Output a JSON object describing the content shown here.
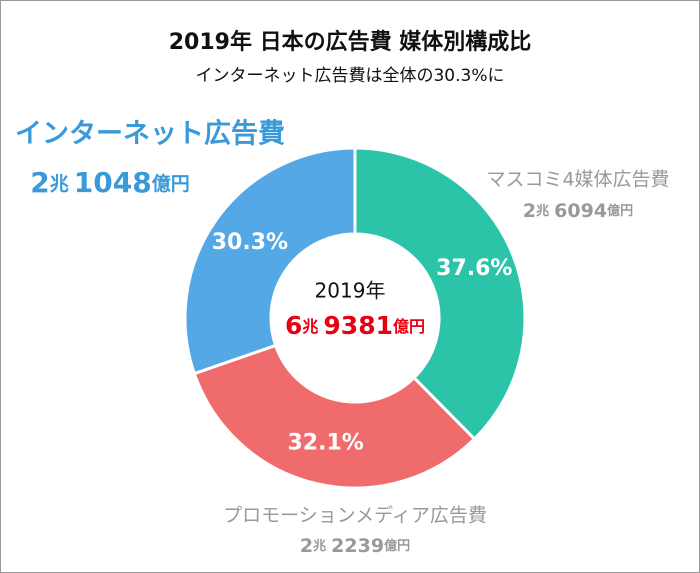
{
  "chart_data": {
    "type": "pie",
    "donut": true,
    "title": "2019年 日本の広告費 媒体別構成比",
    "subtitle": "インターネット広告費は全体の30.3%に",
    "categories": [
      "マスコミ4媒体広告費",
      "プロモーションメディア広告費",
      "インターネット広告費"
    ],
    "values": [
      37.6,
      32.1,
      30.3
    ],
    "value_labels": [
      "37.6%",
      "32.1%",
      "30.3%"
    ],
    "colors": [
      "#2bc4a9",
      "#f06b6b",
      "#55a8e6"
    ],
    "amounts": [
      [
        "2",
        "兆",
        "6094",
        "億円"
      ],
      [
        "2",
        "兆",
        "2239",
        "億円"
      ],
      [
        "2",
        "兆",
        "1048",
        "億円"
      ]
    ],
    "center": {
      "year": "2019年",
      "total": [
        "6",
        "兆",
        "9381",
        "億円"
      ]
    }
  }
}
